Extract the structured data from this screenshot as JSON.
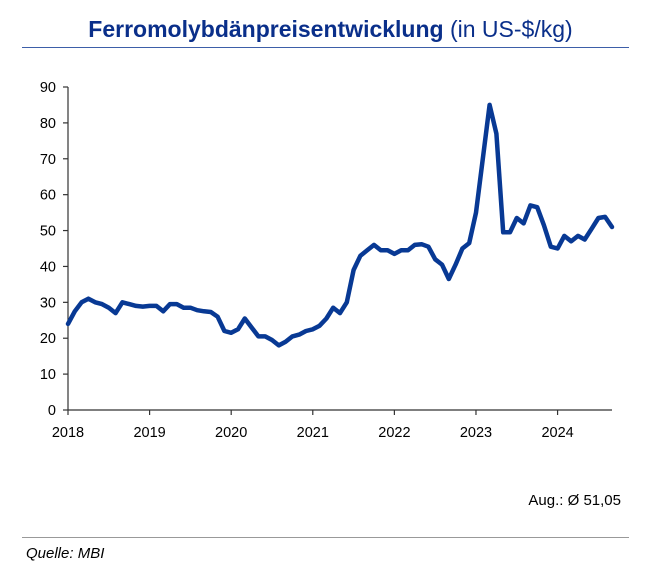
{
  "header": {
    "title_bold": "Ferromolybdänpreisentwicklung",
    "title_unit": "(in US-$/kg)"
  },
  "summary": "Aug.: Ø 51,05",
  "source": "Quelle: MBI",
  "colors": {
    "line": "#083994",
    "title": "#0a2f8a"
  },
  "chart_data": {
    "type": "line",
    "title": "Ferromolybdänpreisentwicklung (in US-$/kg)",
    "xlabel": "",
    "ylabel": "",
    "xlim": [
      2018,
      2024.667
    ],
    "ylim": [
      0,
      90
    ],
    "yticks": [
      0,
      10,
      20,
      30,
      40,
      50,
      60,
      70,
      80,
      90
    ],
    "xticks": [
      "2018",
      "2019",
      "2020",
      "2021",
      "2022",
      "2023",
      "2024"
    ],
    "grid": false,
    "series": [
      {
        "x": [
          2018.0,
          2018.083,
          2018.167,
          2018.25,
          2018.333,
          2018.417,
          2018.5,
          2018.583,
          2018.667,
          2018.75,
          2018.833,
          2018.917,
          2019.0,
          2019.083,
          2019.167,
          2019.25,
          2019.333,
          2019.417,
          2019.5,
          2019.583,
          2019.667,
          2019.75,
          2019.833,
          2019.917,
          2020.0,
          2020.083,
          2020.167,
          2020.25,
          2020.333,
          2020.417,
          2020.5,
          2020.583,
          2020.667,
          2020.75,
          2020.833,
          2020.917,
          2021.0,
          2021.083,
          2021.167,
          2021.25,
          2021.333,
          2021.417,
          2021.5,
          2021.583,
          2021.667,
          2021.75,
          2021.833,
          2021.917,
          2022.0,
          2022.083,
          2022.167,
          2022.25,
          2022.333,
          2022.417,
          2022.5,
          2022.583,
          2022.667,
          2022.75,
          2022.833,
          2022.917,
          2023.0,
          2023.083,
          2023.167,
          2023.25,
          2023.333,
          2023.417,
          2023.5,
          2023.583,
          2023.667,
          2023.75,
          2023.833,
          2023.917,
          2024.0,
          2024.083,
          2024.167,
          2024.25,
          2024.333,
          2024.417,
          2024.5,
          2024.583,
          2024.667
        ],
        "y": [
          24,
          27.5,
          30,
          31,
          30,
          29.5,
          28.5,
          27,
          30,
          29.5,
          29,
          28.8,
          29,
          29,
          27.5,
          29.5,
          29.5,
          28.5,
          28.5,
          27.8,
          27.5,
          27.3,
          26,
          22,
          21.5,
          22.5,
          25.5,
          23,
          20.5,
          20.5,
          19.5,
          18,
          19,
          20.5,
          21,
          22,
          22.5,
          23.5,
          25.5,
          28.5,
          27,
          30,
          39,
          43,
          44.5,
          46,
          44.5,
          44.5,
          43.5,
          44.5,
          44.5,
          46,
          46.2,
          45.5,
          42,
          40.5,
          36.5,
          40.5,
          45,
          46.5,
          55,
          70,
          85,
          77,
          49.5,
          49.5,
          53.5,
          52,
          57,
          56.5,
          51.5,
          45.5,
          45,
          48.5,
          47,
          48.5,
          47.5,
          50.5,
          53.5,
          53.8,
          51
        ]
      }
    ]
  }
}
